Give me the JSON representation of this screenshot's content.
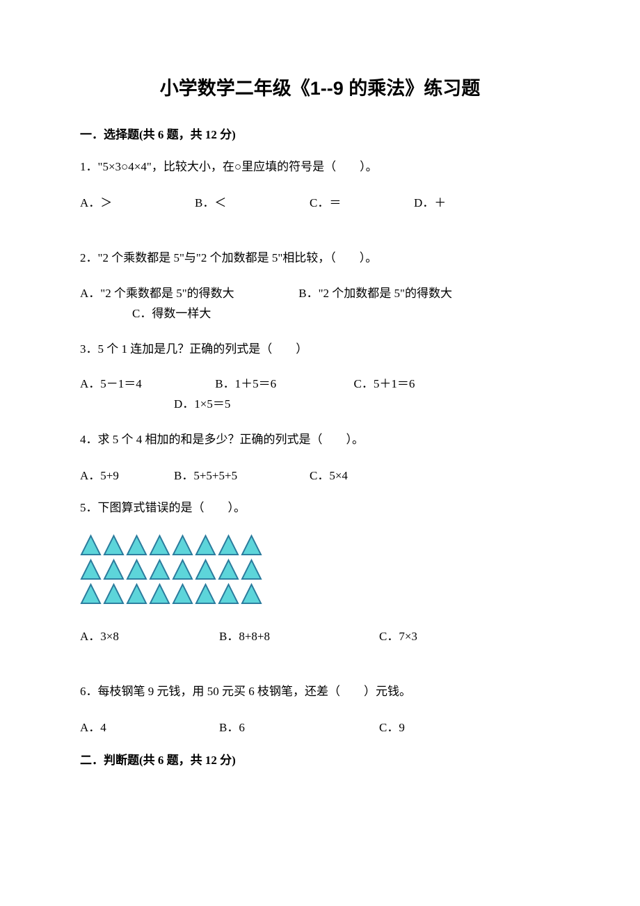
{
  "title": "小学数学二年级《1--9 的乘法》练习题",
  "section1": {
    "heading": "一．选择题(共 6 题，共 12 分)",
    "q1": {
      "text": "1．\"5×3○4×4\"，比较大小，在○里应填的符号是（　　）。",
      "optA": "A．＞",
      "optB": "B．＜",
      "optC": "C．＝",
      "optD": "D．＋"
    },
    "q2": {
      "text": "2．\"2 个乘数都是 5\"与\"2 个加数都是 5\"相比较，（　　）。",
      "optA": "A．\"2 个乘数都是 5\"的得数大",
      "optB": "B．\"2 个加数都是 5\"的得数大",
      "optC": "C．得数一样大"
    },
    "q3": {
      "text": "3．5 个 1 连加是几？正确的列式是（　　）",
      "optA": "A．5－1＝4",
      "optB": "B．1＋5＝6",
      "optC": "C．5＋1＝6",
      "optD": "D．1×5＝5"
    },
    "q4": {
      "text": "4．求 5 个 4 相加的和是多少？正确的列式是（　　）。",
      "optA": "A．5+9",
      "optB": "B．5+5+5+5",
      "optC": "C．5×4"
    },
    "q5": {
      "text": "5．下图算式错误的是（　　）。",
      "triangle_rows": [
        8,
        8,
        8
      ],
      "triangle_fill": "#5dd5da",
      "triangle_stroke": "#2a7a9c",
      "optA": "A．3×8",
      "optB": "B．8+8+8",
      "optC": "C．7×3"
    },
    "q6": {
      "text": "6．每枝钢笔 9 元钱，用 50 元买 6 枝钢笔，还差（　　）元钱。",
      "optA": "A．4",
      "optB": "B．6",
      "optC": "C．9"
    }
  },
  "section2": {
    "heading": "二．判断题(共 6 题，共 12 分)"
  }
}
